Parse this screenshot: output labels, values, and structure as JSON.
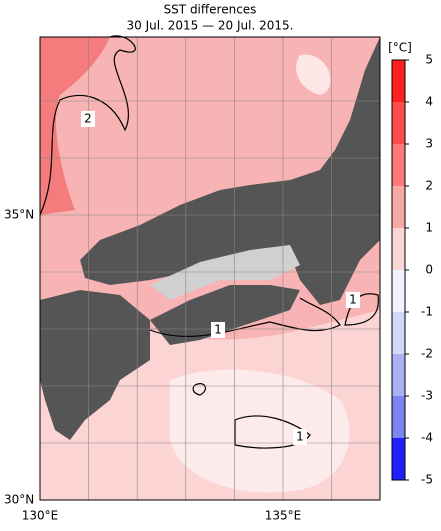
{
  "header": {
    "title": "SST differences",
    "subtitle": "30 Jul. 2015 — 20 Jul. 2015."
  },
  "map": {
    "lat_labels": [
      "35°N",
      "30°N"
    ],
    "lon_labels": [
      "130°E",
      "135°E"
    ],
    "contour_labels": [
      "2",
      "1",
      "1",
      "1"
    ]
  },
  "colorbar": {
    "unit": "[°C]",
    "ticks": [
      5,
      4,
      3,
      2,
      1,
      0,
      -1,
      -2,
      -3,
      -4,
      -5
    ],
    "colors": [
      "#ff2020",
      "#ff4c4c",
      "#ff7878",
      "#f9a8a8",
      "#fcd6d6",
      "#f2f2fc",
      "#d4d8f8",
      "#aab0f4",
      "#7c84f0",
      "#2020ff"
    ]
  }
}
